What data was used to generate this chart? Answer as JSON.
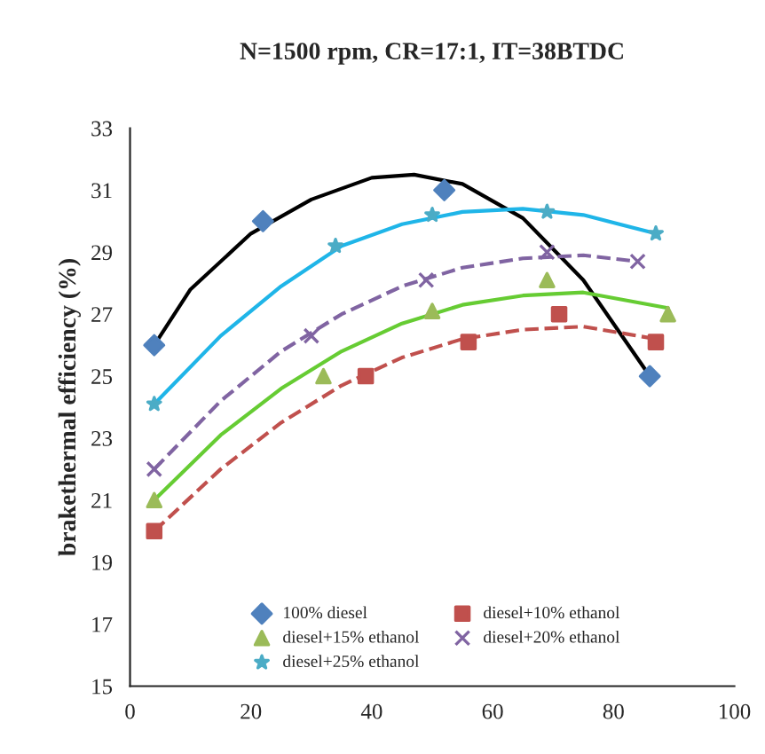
{
  "chart_data": {
    "type": "scatter",
    "title": "N=1500 rpm, CR=17:1, IT=38BTDC",
    "ylabel": "brakethermal efficiency (%)",
    "xlim": [
      0,
      100
    ],
    "xticks": [
      0,
      20,
      40,
      60,
      80,
      100
    ],
    "ylim": [
      15,
      33
    ],
    "yticks": [
      15,
      17,
      19,
      21,
      23,
      25,
      27,
      29,
      31,
      33
    ],
    "grid": false,
    "legend": "bottom",
    "series": [
      {
        "name": "100% diesel",
        "marker": "diamond",
        "color": "#4f81bd",
        "x": [
          4,
          22,
          52,
          86
        ],
        "values": [
          26,
          30,
          31,
          25
        ]
      },
      {
        "name": "diesel+10% ethanol",
        "marker": "square",
        "color": "#c0504d",
        "x": [
          4,
          39,
          56,
          71,
          87
        ],
        "values": [
          20,
          25,
          26.1,
          27,
          26.1
        ]
      },
      {
        "name": "diesel+15% ethanol",
        "marker": "triangle",
        "color": "#9bbb59",
        "x": [
          4,
          32,
          50,
          69,
          89
        ],
        "values": [
          21,
          25,
          27.1,
          28.1,
          27
        ]
      },
      {
        "name": "diesel+20% ethanol",
        "marker": "cross",
        "color": "#8064a2",
        "x": [
          4,
          30,
          49,
          69,
          84
        ],
        "values": [
          22,
          26.3,
          28.1,
          29,
          28.7
        ]
      },
      {
        "name": "diesel+25% ethanol",
        "marker": "star",
        "color": "#4bacc6",
        "x": [
          4,
          34,
          50,
          69,
          87
        ],
        "values": [
          24.1,
          29.2,
          30.2,
          30.3,
          29.6
        ]
      },
      {
        "type": "line",
        "line_style": "solid",
        "color": "#000000",
        "x": [
          4,
          10,
          20,
          30,
          40,
          47,
          55,
          65,
          75,
          86
        ],
        "values": [
          26,
          27.8,
          29.6,
          30.7,
          31.4,
          31.5,
          31.2,
          30.1,
          28.1,
          25
        ]
      },
      {
        "type": "line",
        "line_style": "dashed",
        "color": "#c0504d",
        "x": [
          4,
          15,
          25,
          35,
          45,
          55,
          65,
          75,
          87
        ],
        "values": [
          20,
          22,
          23.5,
          24.7,
          25.6,
          26.2,
          26.5,
          26.6,
          26.2
        ]
      },
      {
        "type": "line",
        "line_style": "solid",
        "color": "#66cc33",
        "x": [
          4,
          15,
          25,
          35,
          45,
          55,
          65,
          75,
          89
        ],
        "values": [
          21,
          23.1,
          24.6,
          25.8,
          26.7,
          27.3,
          27.6,
          27.7,
          27.2
        ]
      },
      {
        "type": "line",
        "line_style": "dashed",
        "color": "#8064a2",
        "x": [
          4,
          15,
          25,
          35,
          45,
          55,
          65,
          75,
          84
        ],
        "values": [
          22,
          24.2,
          25.8,
          27,
          27.9,
          28.5,
          28.8,
          28.9,
          28.7
        ]
      },
      {
        "type": "line",
        "line_style": "solid",
        "color": "#1fb5e8",
        "x": [
          4,
          15,
          25,
          35,
          45,
          55,
          65,
          75,
          87
        ],
        "values": [
          24.1,
          26.3,
          27.9,
          29.2,
          29.9,
          30.3,
          30.4,
          30.2,
          29.6
        ]
      }
    ]
  }
}
